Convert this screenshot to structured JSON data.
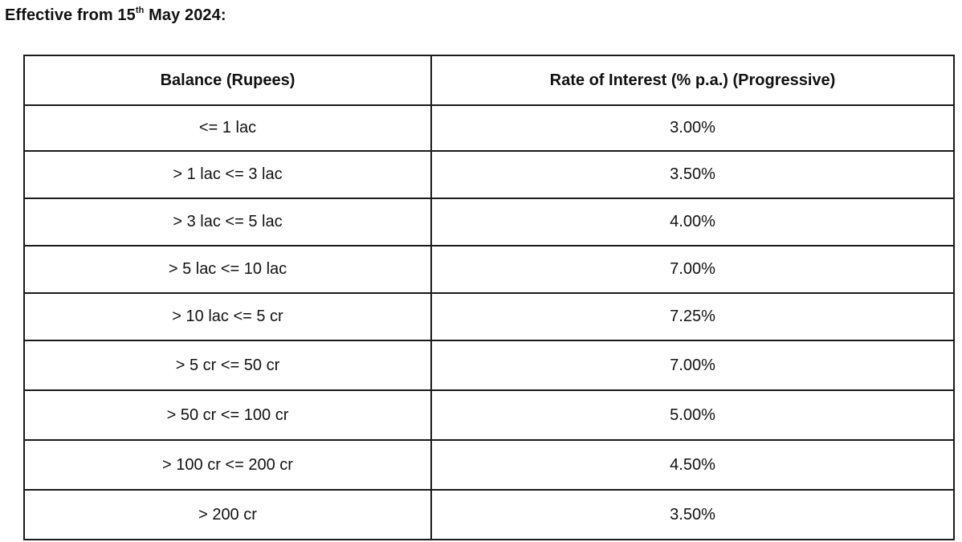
{
  "heading": {
    "prefix": "Effective from 15",
    "superscript": "th",
    "suffix": " May 2024:"
  },
  "table": {
    "headers": [
      "Balance (Rupees)",
      "Rate of Interest (% p.a.) (Progressive)"
    ],
    "rows": [
      {
        "balance": "<= 1 lac",
        "rate": "3.00%"
      },
      {
        "balance": "> 1 lac <= 3 lac",
        "rate": "3.50%"
      },
      {
        "balance": "> 3 lac <= 5 lac",
        "rate": "4.00%"
      },
      {
        "balance": "> 5 lac <= 10 lac",
        "rate": "7.00%"
      },
      {
        "balance": "> 10 lac <= 5 cr",
        "rate": "7.25%"
      },
      {
        "balance": "> 5 cr <= 50 cr",
        "rate": "7.00%"
      },
      {
        "balance": "> 50 cr <= 100 cr",
        "rate": "5.00%"
      },
      {
        "balance": "> 100 cr <= 200 cr",
        "rate": "4.50%"
      },
      {
        "balance": "> 200 cr",
        "rate": "3.50%"
      }
    ]
  }
}
